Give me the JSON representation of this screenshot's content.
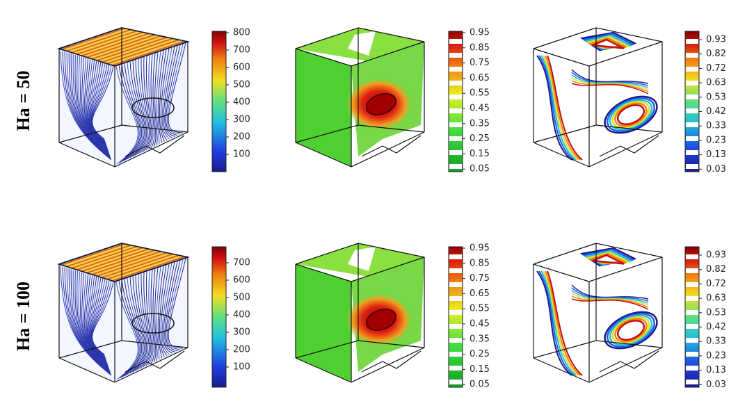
{
  "rows": [
    {
      "label": "Ha = 50",
      "colorbars": [
        [
          "800",
          "700",
          "600",
          "500",
          "400",
          "300",
          "200",
          "100"
        ],
        [
          "0.95",
          "0.85",
          "0.75",
          "0.65",
          "0.55",
          "0.45",
          "0.35",
          "0.25",
          "0.15",
          "0.05"
        ],
        [
          "0.93",
          "0.82",
          "0.72",
          "0.63",
          "0.53",
          "0.42",
          "0.33",
          "0.23",
          "0.13",
          "0.03"
        ]
      ]
    },
    {
      "label": "Ha = 100",
      "colorbars": [
        [
          "700",
          "600",
          "500",
          "400",
          "300",
          "200",
          "100"
        ],
        [
          "0.95",
          "0.85",
          "0.75",
          "0.65",
          "0.55",
          "0.45",
          "0.35",
          "0.25",
          "0.15",
          "0.05"
        ],
        [
          "0.93",
          "0.82",
          "0.72",
          "0.63",
          "0.53",
          "0.42",
          "0.33",
          "0.23",
          "0.13",
          "0.03"
        ]
      ]
    }
  ]
}
